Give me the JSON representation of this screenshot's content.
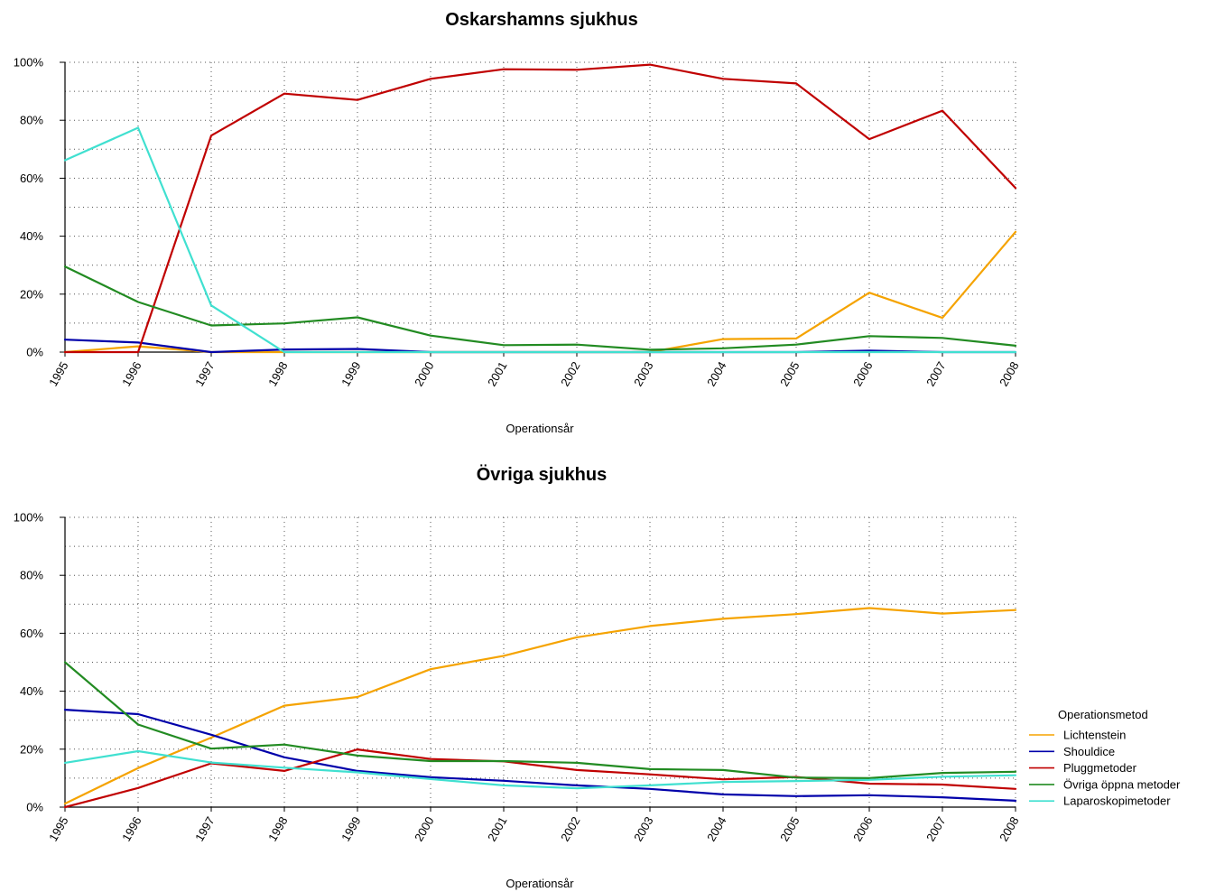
{
  "colors": {
    "Lichtenstein": "#F5A300",
    "Shouldice": "#0000AA",
    "Pluggmetoder": "#C00000",
    "Övriga öppna metoder": "#228B22",
    "Laparoskopimetoder": "#40E0D0"
  },
  "legend": {
    "title": "Operationsmetod",
    "placement": "right",
    "items": [
      "Lichtenstein",
      "Shouldice",
      "Pluggmetoder",
      "Övriga öppna metoder",
      "Laparoskopimetoder"
    ]
  },
  "chart_data": [
    {
      "type": "line",
      "title": "Oskarshamns sjukhus",
      "xlabel": "Operationsår",
      "ylabel": "",
      "ylim": [
        0,
        100
      ],
      "grid": true,
      "x": [
        "1995",
        "1996",
        "1997",
        "1998",
        "1999",
        "2000",
        "2001",
        "2002",
        "2003",
        "2004",
        "2005",
        "2006",
        "2007",
        "2008"
      ],
      "yticks": [
        "0%",
        "20%",
        "40%",
        "60%",
        "80%",
        "100%"
      ],
      "series": [
        {
          "name": "Lichtenstein",
          "values": [
            0,
            2,
            0,
            0,
            0,
            0,
            0,
            0,
            0,
            4.5,
            4.7,
            20.5,
            11.8,
            41.5
          ]
        },
        {
          "name": "Shouldice",
          "values": [
            4.3,
            3.3,
            0,
            0.9,
            1.1,
            0,
            0,
            0,
            0,
            0,
            0,
            0.5,
            0,
            0
          ]
        },
        {
          "name": "Pluggmetoder",
          "values": [
            0,
            0,
            74.7,
            89.2,
            87.0,
            94.3,
            97.6,
            97.4,
            99.2,
            94.3,
            92.7,
            73.5,
            83.3,
            56.6
          ]
        },
        {
          "name": "Övriga öppna metoder",
          "values": [
            29.5,
            17.3,
            9.2,
            9.9,
            12.0,
            5.7,
            2.4,
            2.6,
            0.8,
            1.3,
            2.6,
            5.5,
            4.9,
            2.2
          ]
        },
        {
          "name": "Laparoskopimetoder",
          "values": [
            66.2,
            77.4,
            16.1,
            0,
            0,
            0,
            0,
            0,
            0,
            0,
            0,
            0,
            0,
            0
          ]
        }
      ]
    },
    {
      "type": "line",
      "title": "Övriga sjukhus",
      "xlabel": "Operationsår",
      "ylabel": "",
      "ylim": [
        0,
        100
      ],
      "grid": true,
      "x": [
        "1995",
        "1996",
        "1997",
        "1998",
        "1999",
        "2000",
        "2001",
        "2002",
        "2003",
        "2004",
        "2005",
        "2006",
        "2007",
        "2008"
      ],
      "yticks": [
        "0%",
        "20%",
        "40%",
        "60%",
        "80%",
        "100%"
      ],
      "series": [
        {
          "name": "Lichtenstein",
          "values": [
            1.2,
            13.5,
            24.0,
            35.0,
            38.0,
            47.6,
            52.2,
            58.6,
            62.5,
            65.0,
            66.6,
            68.7,
            66.8,
            68.0
          ]
        },
        {
          "name": "Shouldice",
          "values": [
            33.6,
            32.1,
            25.0,
            17.2,
            12.5,
            10.3,
            9.1,
            7.5,
            6.3,
            4.4,
            3.8,
            4.1,
            3.4,
            2.2
          ]
        },
        {
          "name": "Pluggmetoder",
          "values": [
            0,
            6.6,
            15.1,
            12.5,
            19.9,
            16.6,
            15.8,
            12.8,
            11.3,
            9.6,
            10.4,
            8.1,
            7.8,
            6.3
          ]
        },
        {
          "name": "Övriga öppna metoder",
          "values": [
            50.0,
            28.5,
            20.2,
            21.6,
            17.8,
            15.9,
            15.9,
            15.3,
            13.1,
            12.8,
            10.2,
            10.0,
            11.8,
            12.2
          ]
        },
        {
          "name": "Laparoskopimetoder",
          "values": [
            15.3,
            19.3,
            15.4,
            13.6,
            12.0,
            9.7,
            7.5,
            6.5,
            7.5,
            8.7,
            9.0,
            9.4,
            10.5,
            11.0
          ]
        }
      ]
    }
  ]
}
